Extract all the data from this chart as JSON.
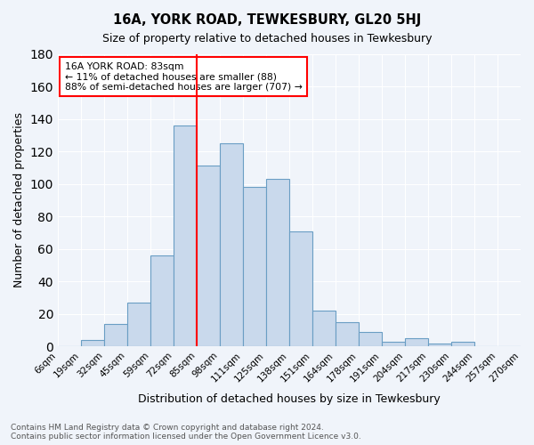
{
  "title1": "16A, YORK ROAD, TEWKESBURY, GL20 5HJ",
  "title2": "Size of property relative to detached houses in Tewkesbury",
  "xlabel": "Distribution of detached houses by size in Tewkesbury",
  "ylabel": "Number of detached properties",
  "bar_labels": [
    "6sqm",
    "19sqm",
    "32sqm",
    "45sqm",
    "59sqm",
    "72sqm",
    "85sqm",
    "98sqm",
    "111sqm",
    "125sqm",
    "138sqm",
    "151sqm",
    "164sqm",
    "178sqm",
    "191sqm",
    "204sqm",
    "217sqm",
    "230sqm",
    "244sqm",
    "257sqm",
    "270sqm"
  ],
  "bar_values": [
    0,
    4,
    14,
    27,
    56,
    136,
    111,
    125,
    98,
    103,
    71,
    22,
    15,
    9,
    3,
    5,
    2,
    3,
    0,
    0
  ],
  "bar_color": "#c9d9ec",
  "bar_edge_color": "#6a9ec4",
  "red_line_x": 6,
  "annotation_text": "16A YORK ROAD: 83sqm\n← 11% of detached houses are smaller (88)\n88% of semi-detached houses are larger (707) →",
  "annotation_box_color": "white",
  "annotation_box_edge_color": "red",
  "ylim": [
    0,
    180
  ],
  "yticks": [
    0,
    20,
    40,
    60,
    80,
    100,
    120,
    140,
    160,
    180
  ],
  "footnote": "Contains HM Land Registry data © Crown copyright and database right 2024.\nContains public sector information licensed under the Open Government Licence v3.0.",
  "bg_color": "#f0f4fa",
  "grid_color": "white"
}
